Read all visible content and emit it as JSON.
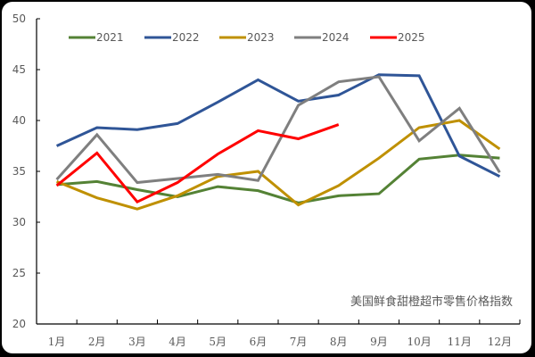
{
  "chart_data": {
    "type": "line",
    "title": "",
    "annotation": "美国鲜食甜橙超市零售价格指数",
    "xlabel": "",
    "ylabel": "",
    "ylim": [
      20,
      50
    ],
    "yticks": [
      20,
      25,
      30,
      35,
      40,
      45,
      50
    ],
    "grid": false,
    "legend_position": "top",
    "categories": [
      "1月",
      "2月",
      "3月",
      "4月",
      "5月",
      "6月",
      "7月",
      "8月",
      "9月",
      "10月",
      "11月",
      "12月"
    ],
    "series": [
      {
        "name": "2021",
        "color": "#548235",
        "values": [
          33.7,
          34.0,
          33.2,
          32.5,
          33.5,
          33.1,
          31.9,
          32.6,
          32.8,
          36.2,
          36.6,
          36.3
        ]
      },
      {
        "name": "2022",
        "color": "#2F5597",
        "values": [
          37.5,
          39.3,
          39.1,
          39.7,
          41.8,
          44.0,
          41.9,
          42.5,
          44.5,
          44.4,
          36.5,
          34.5
        ]
      },
      {
        "name": "2023",
        "color": "#BF9000",
        "values": [
          34.0,
          32.4,
          31.3,
          32.6,
          34.5,
          35.0,
          31.7,
          33.6,
          36.3,
          39.3,
          40.0,
          37.2
        ]
      },
      {
        "name": "2024",
        "color": "#7F7F7F",
        "values": [
          34.2,
          38.6,
          33.9,
          34.3,
          34.7,
          34.1,
          41.5,
          43.8,
          44.3,
          38.0,
          41.2,
          34.9
        ]
      },
      {
        "name": "2025",
        "color": "#FF0000",
        "values": [
          33.6,
          36.8,
          32.0,
          33.9,
          36.7,
          39.0,
          38.2,
          39.6
        ]
      }
    ]
  }
}
